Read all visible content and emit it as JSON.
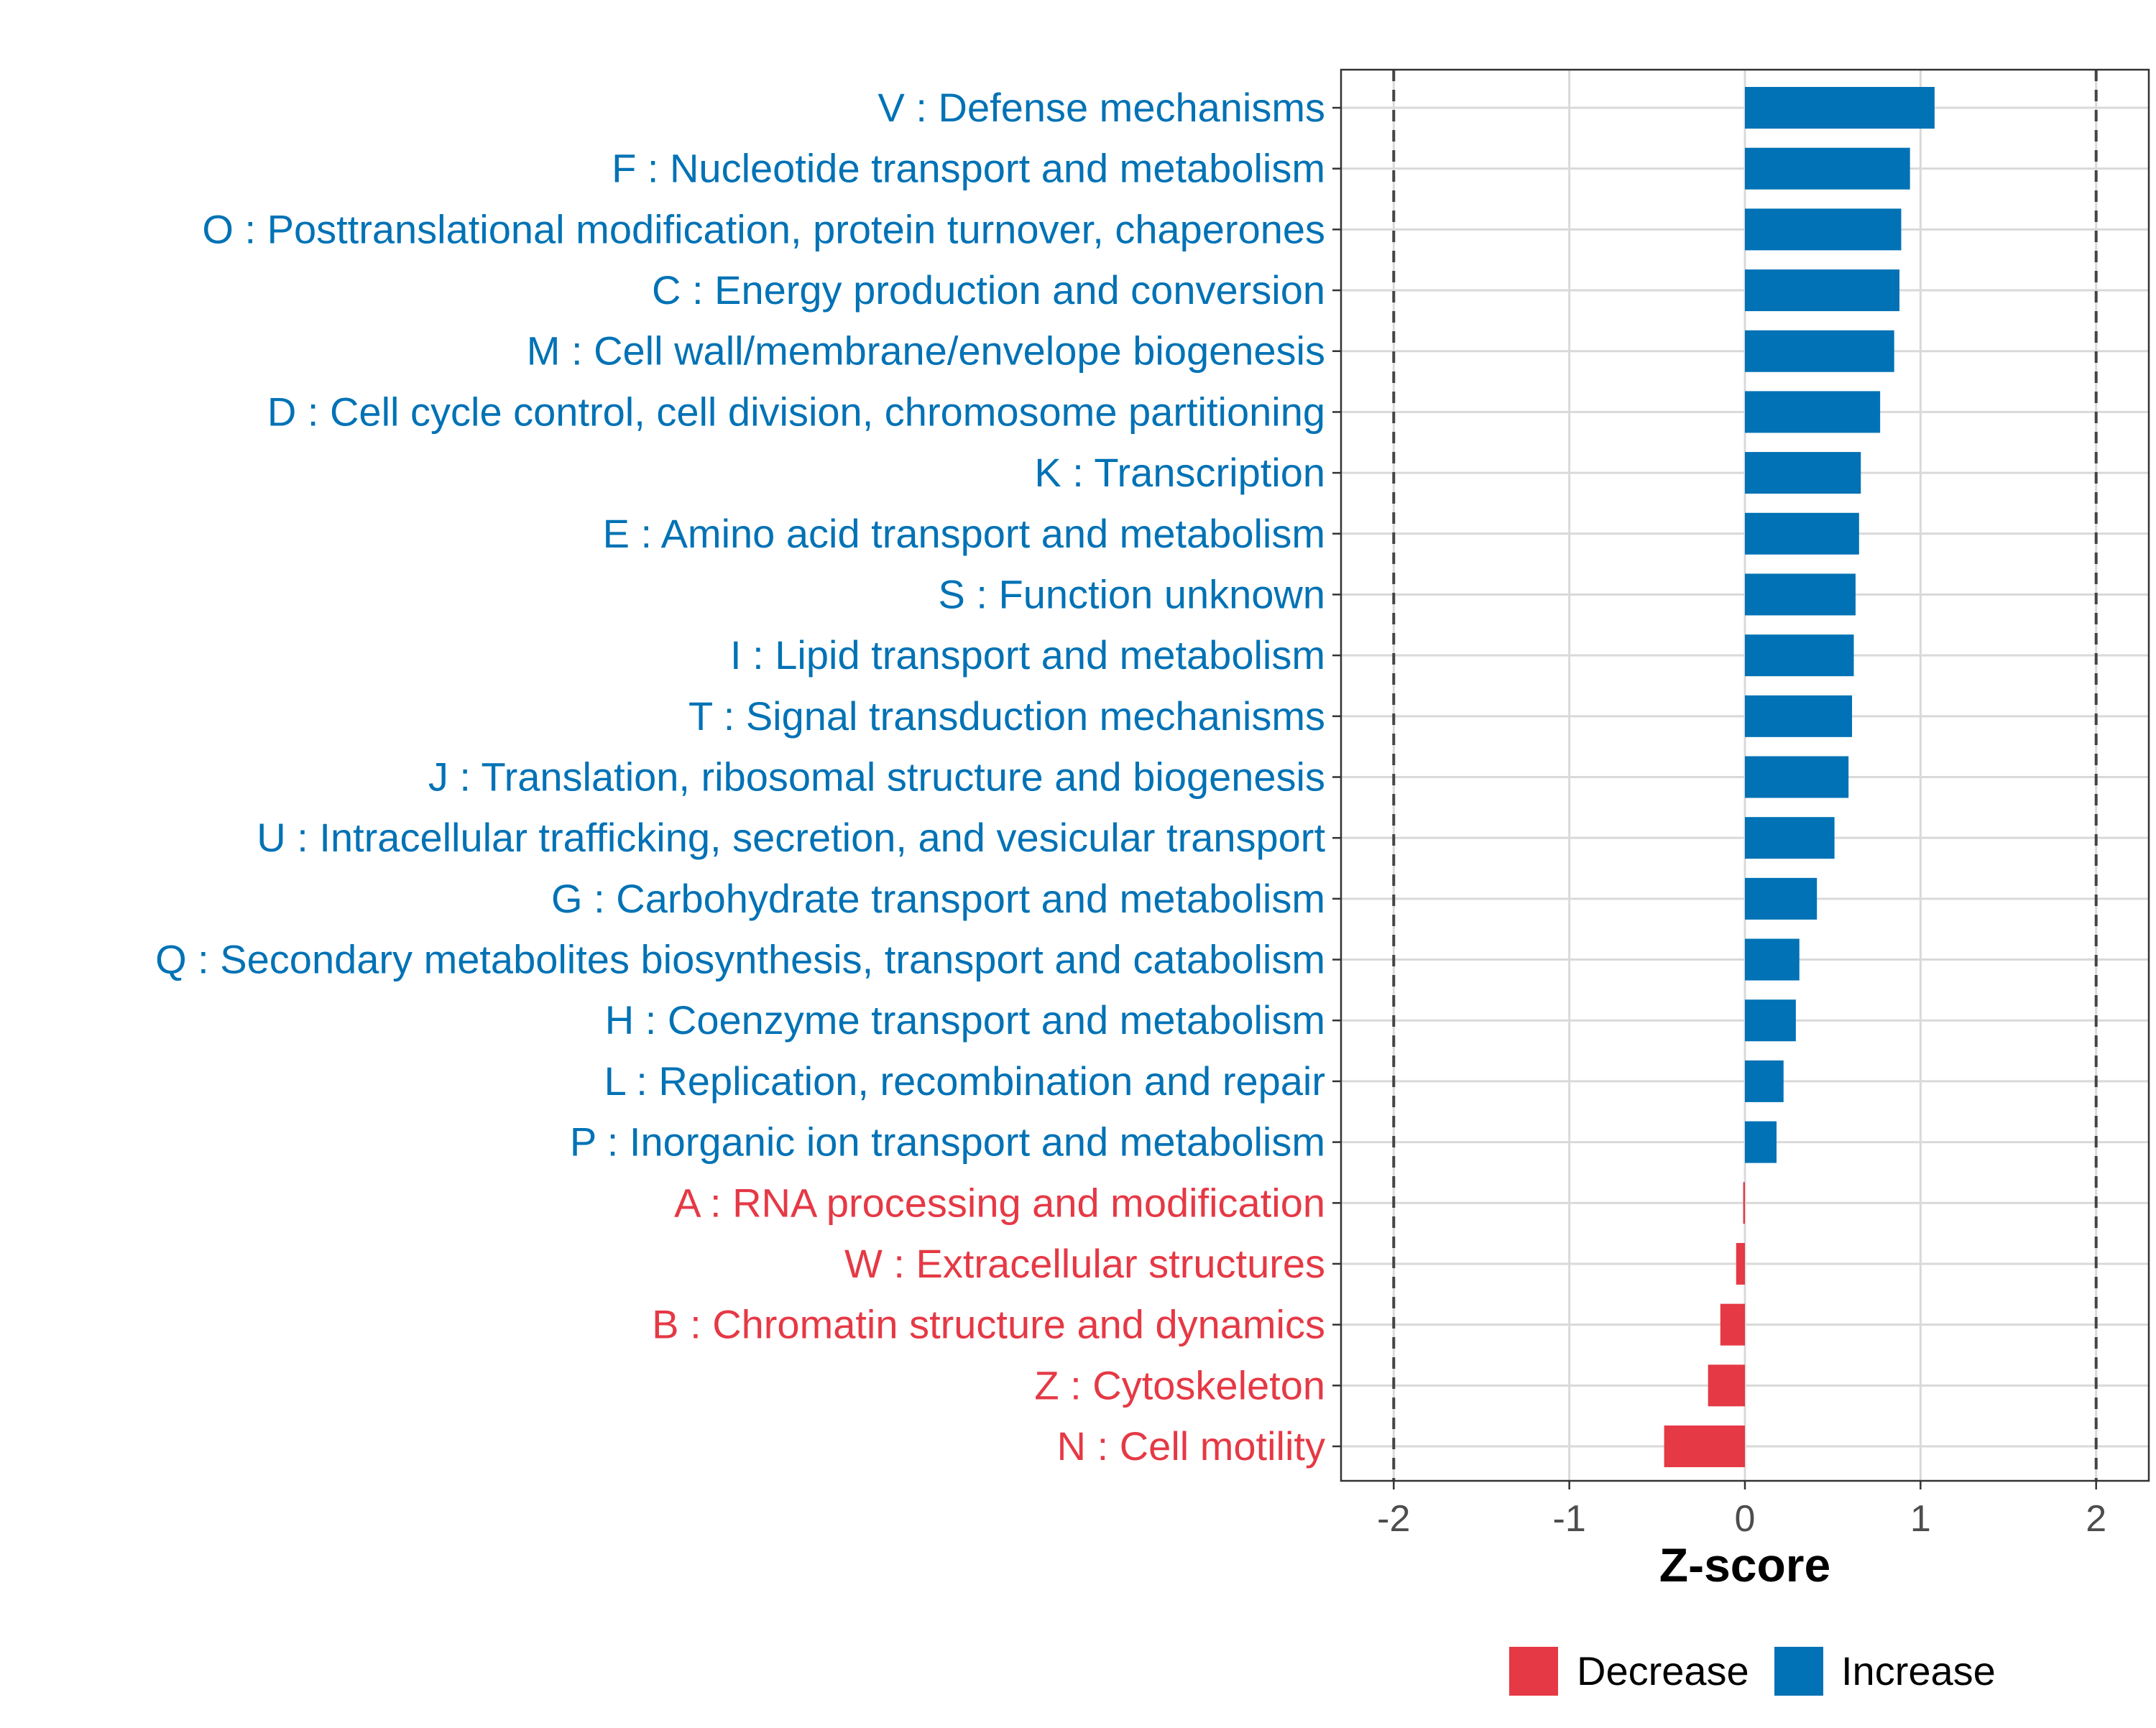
{
  "chart_data": {
    "type": "bar",
    "orientation": "horizontal",
    "title": "",
    "xlabel": "Z-score",
    "ylabel": "",
    "xlim": [
      -2.3,
      2.3
    ],
    "xticks": [
      -2,
      -1,
      0,
      1,
      2
    ],
    "xtick_labels": [
      "-2",
      "-1",
      "0",
      "1",
      "2"
    ],
    "reference_lines": [
      -2,
      2
    ],
    "grid": true,
    "colors": {
      "Increase": "#0072B5",
      "Decrease": "#E53945"
    },
    "legend": {
      "position": "bottom",
      "entries": [
        "Decrease",
        "Increase"
      ]
    },
    "categories": [
      "V : Defense mechanisms",
      "F : Nucleotide transport and metabolism",
      "O : Posttranslational modification, protein turnover, chaperones",
      "C : Energy production and conversion",
      "M : Cell wall/membrane/envelope biogenesis",
      "D : Cell cycle control, cell division, chromosome partitioning",
      "K : Transcription",
      "E : Amino acid transport and metabolism",
      "S : Function unknown",
      "I : Lipid transport and metabolism",
      "T : Signal transduction mechanisms",
      "J : Translation, ribosomal structure and biogenesis",
      "U : Intracellular trafficking, secretion, and vesicular transport",
      "G : Carbohydrate transport and metabolism",
      "Q : Secondary metabolites biosynthesis, transport and catabolism",
      "H : Coenzyme transport and metabolism",
      "L : Replication, recombination and repair",
      "P : Inorganic ion transport and metabolism",
      "A : RNA processing and modification",
      "W : Extracellular structures",
      "B : Chromatin structure and dynamics",
      "Z : Cytoskeleton",
      "N : Cell motility"
    ],
    "values": [
      1.08,
      0.94,
      0.89,
      0.88,
      0.85,
      0.77,
      0.66,
      0.65,
      0.63,
      0.62,
      0.61,
      0.59,
      0.51,
      0.41,
      0.31,
      0.29,
      0.22,
      0.18,
      -0.01,
      -0.05,
      -0.14,
      -0.21,
      -0.46
    ],
    "groups": [
      "Increase",
      "Increase",
      "Increase",
      "Increase",
      "Increase",
      "Increase",
      "Increase",
      "Increase",
      "Increase",
      "Increase",
      "Increase",
      "Increase",
      "Increase",
      "Increase",
      "Increase",
      "Increase",
      "Increase",
      "Increase",
      "Decrease",
      "Decrease",
      "Decrease",
      "Decrease",
      "Decrease"
    ]
  }
}
